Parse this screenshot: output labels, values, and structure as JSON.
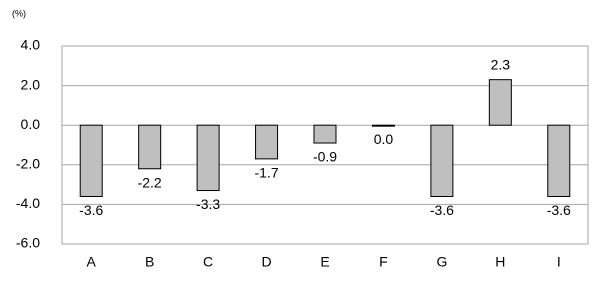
{
  "chart_data": {
    "type": "bar",
    "unit_label": "(%)",
    "categories": [
      "A",
      "B",
      "C",
      "D",
      "E",
      "F",
      "G",
      "H",
      "I"
    ],
    "values": [
      -3.6,
      -2.2,
      -3.3,
      -1.7,
      -0.9,
      0.0,
      -3.6,
      2.3,
      -3.6
    ],
    "value_labels": [
      "-3.6",
      "-2.2",
      "-3.3",
      "-1.7",
      "-0.9",
      "0.0",
      "-3.6",
      "2.3",
      "-3.6"
    ],
    "color": "#bfbfbf",
    "ylim": [
      -6,
      4
    ],
    "yticks": [
      {
        "value": -6,
        "label": "-6.0"
      },
      {
        "value": -4,
        "label": "-4.0"
      },
      {
        "value": -2,
        "label": "-2.0"
      },
      {
        "value": 0,
        "label": "0.0"
      },
      {
        "value": 2,
        "label": "2.0"
      },
      {
        "value": 4,
        "label": "4.0"
      }
    ],
    "grid": true
  }
}
